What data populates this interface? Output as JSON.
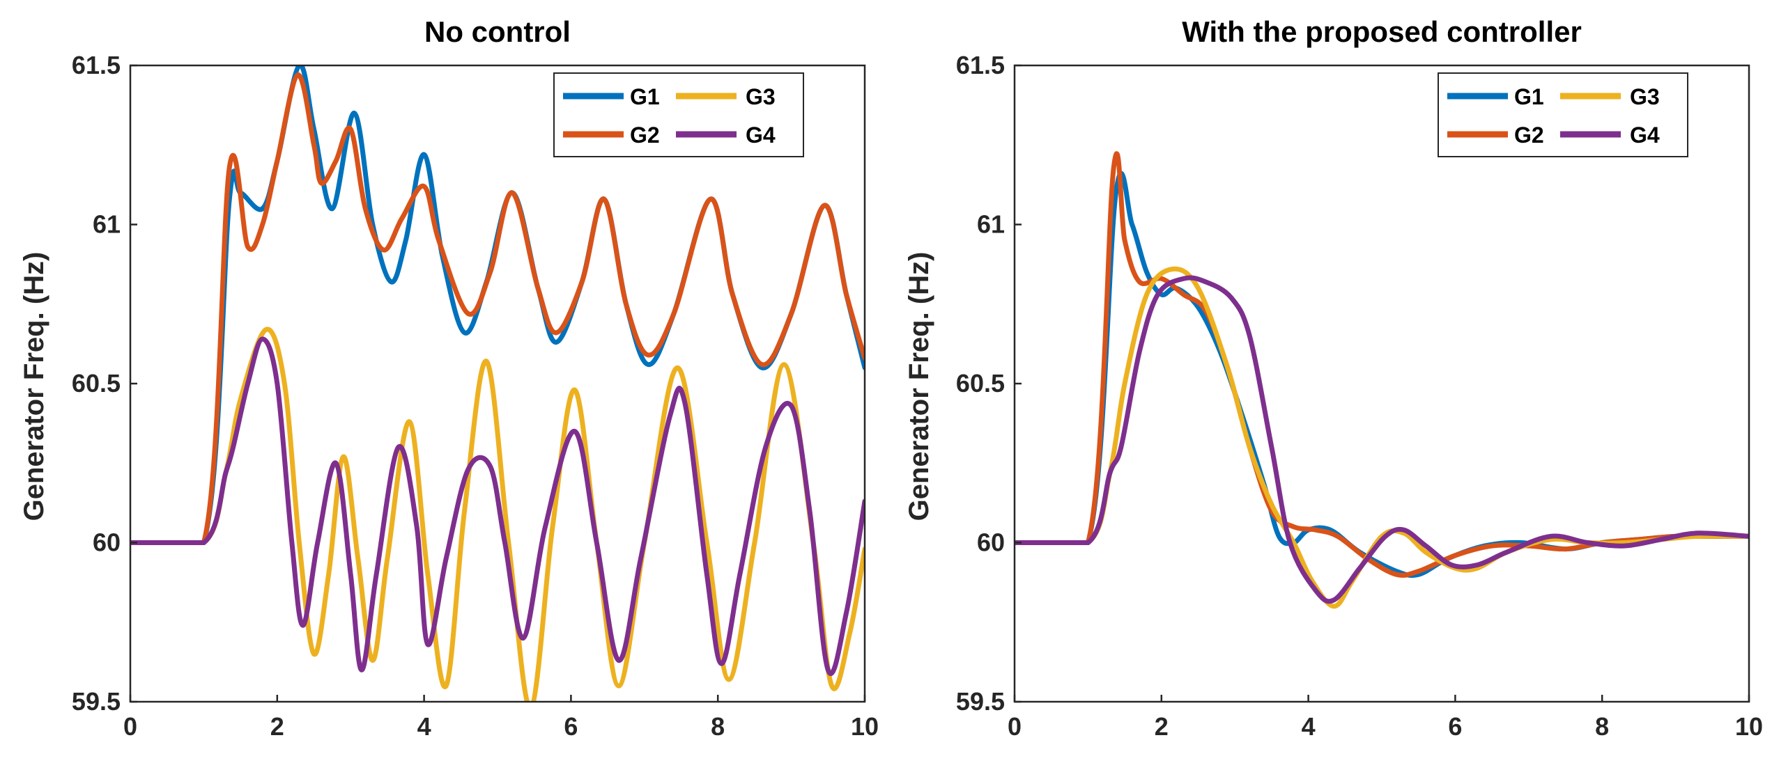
{
  "chart_data": [
    {
      "type": "line",
      "title": "No control",
      "xlabel": "",
      "ylabel": "Generator Freq. (Hz)",
      "xlim": [
        0,
        10
      ],
      "ylim": [
        59.5,
        61.5
      ],
      "xticks": [
        "0",
        "2",
        "4",
        "6",
        "8",
        "10"
      ],
      "yticks": [
        "59.5",
        "60",
        "60.5",
        "61",
        "61.5"
      ],
      "legend": {
        "location": "top-right",
        "entries": [
          "G1",
          "G3",
          "G2",
          "G4"
        ]
      },
      "series": [
        {
          "name": "G1",
          "color": "#0072BD",
          "points": [
            [
              0,
              60
            ],
            [
              1,
              60
            ],
            [
              1.35,
              61.08
            ],
            [
              1.5,
              61.1
            ],
            [
              1.8,
              61.05
            ],
            [
              2.0,
              61.2
            ],
            [
              2.3,
              61.5
            ],
            [
              2.5,
              61.3
            ],
            [
              2.75,
              61.05
            ],
            [
              3.05,
              61.35
            ],
            [
              3.3,
              61.0
            ],
            [
              3.55,
              60.82
            ],
            [
              3.75,
              60.95
            ],
            [
              4.0,
              61.22
            ],
            [
              4.25,
              60.9
            ],
            [
              4.55,
              60.66
            ],
            [
              4.85,
              60.82
            ],
            [
              5.2,
              61.1
            ],
            [
              5.55,
              60.8
            ],
            [
              5.8,
              60.63
            ],
            [
              6.15,
              60.82
            ],
            [
              6.45,
              61.08
            ],
            [
              6.75,
              60.75
            ],
            [
              7.05,
              60.56
            ],
            [
              7.4,
              60.72
            ],
            [
              7.9,
              61.08
            ],
            [
              8.2,
              60.78
            ],
            [
              8.6,
              60.55
            ],
            [
              9.0,
              60.72
            ],
            [
              9.45,
              61.06
            ],
            [
              9.75,
              60.78
            ],
            [
              10.0,
              60.55
            ]
          ]
        },
        {
          "name": "G2",
          "color": "#D95319",
          "points": [
            [
              0,
              60
            ],
            [
              1,
              60
            ],
            [
              1.35,
              61.18
            ],
            [
              1.6,
              60.93
            ],
            [
              1.8,
              61.0
            ],
            [
              2.0,
              61.2
            ],
            [
              2.28,
              61.47
            ],
            [
              2.5,
              61.25
            ],
            [
              2.6,
              61.13
            ],
            [
              2.8,
              61.2
            ],
            [
              3.0,
              61.3
            ],
            [
              3.2,
              61.05
            ],
            [
              3.45,
              60.92
            ],
            [
              3.7,
              61.02
            ],
            [
              4.0,
              61.12
            ],
            [
              4.2,
              60.95
            ],
            [
              4.6,
              60.72
            ],
            [
              4.9,
              60.85
            ],
            [
              5.2,
              61.1
            ],
            [
              5.55,
              60.8
            ],
            [
              5.8,
              60.66
            ],
            [
              6.15,
              60.82
            ],
            [
              6.45,
              61.08
            ],
            [
              6.75,
              60.75
            ],
            [
              7.05,
              60.59
            ],
            [
              7.4,
              60.72
            ],
            [
              7.9,
              61.08
            ],
            [
              8.2,
              60.78
            ],
            [
              8.6,
              60.56
            ],
            [
              9.0,
              60.72
            ],
            [
              9.45,
              61.06
            ],
            [
              9.75,
              60.78
            ],
            [
              10.0,
              60.58
            ]
          ]
        },
        {
          "name": "G3",
          "color": "#EDB120",
          "points": [
            [
              0,
              60
            ],
            [
              1,
              60
            ],
            [
              1.3,
              60.22
            ],
            [
              1.5,
              60.45
            ],
            [
              1.85,
              60.67
            ],
            [
              2.1,
              60.5
            ],
            [
              2.3,
              60.0
            ],
            [
              2.5,
              59.65
            ],
            [
              2.7,
              59.9
            ],
            [
              2.9,
              60.27
            ],
            [
              3.1,
              59.95
            ],
            [
              3.3,
              59.63
            ],
            [
              3.5,
              59.95
            ],
            [
              3.8,
              60.38
            ],
            [
              4.05,
              59.9
            ],
            [
              4.3,
              59.55
            ],
            [
              4.55,
              60.1
            ],
            [
              4.85,
              60.57
            ],
            [
              5.15,
              60.0
            ],
            [
              5.45,
              59.48
            ],
            [
              5.75,
              60.05
            ],
            [
              6.05,
              60.48
            ],
            [
              6.35,
              60.0
            ],
            [
              6.65,
              59.55
            ],
            [
              7.0,
              60.0
            ],
            [
              7.45,
              60.55
            ],
            [
              7.85,
              60.0
            ],
            [
              8.15,
              59.57
            ],
            [
              8.5,
              60.0
            ],
            [
              8.9,
              60.56
            ],
            [
              9.3,
              60.0
            ],
            [
              9.55,
              59.55
            ],
            [
              9.8,
              59.72
            ],
            [
              10.0,
              59.98
            ]
          ]
        },
        {
          "name": "G4",
          "color": "#7E2F8E",
          "points": [
            [
              0,
              60
            ],
            [
              1,
              60
            ],
            [
              1.3,
              60.22
            ],
            [
              1.4,
              60.3
            ],
            [
              1.6,
              60.5
            ],
            [
              1.8,
              60.64
            ],
            [
              2.0,
              60.5
            ],
            [
              2.2,
              60.0
            ],
            [
              2.35,
              59.74
            ],
            [
              2.55,
              60.0
            ],
            [
              2.8,
              60.25
            ],
            [
              3.0,
              59.9
            ],
            [
              3.15,
              59.6
            ],
            [
              3.35,
              59.9
            ],
            [
              3.65,
              60.3
            ],
            [
              3.9,
              60.05
            ],
            [
              4.05,
              59.68
            ],
            [
              4.3,
              59.95
            ],
            [
              4.6,
              60.23
            ],
            [
              4.9,
              60.24
            ],
            [
              5.1,
              60.0
            ],
            [
              5.35,
              59.7
            ],
            [
              5.65,
              60.05
            ],
            [
              6.05,
              60.35
            ],
            [
              6.35,
              60.0
            ],
            [
              6.65,
              59.63
            ],
            [
              6.95,
              59.95
            ],
            [
              7.35,
              60.4
            ],
            [
              7.55,
              60.44
            ],
            [
              7.85,
              59.9
            ],
            [
              8.05,
              59.62
            ],
            [
              8.3,
              59.9
            ],
            [
              8.65,
              60.3
            ],
            [
              9.0,
              60.43
            ],
            [
              9.25,
              60.1
            ],
            [
              9.5,
              59.6
            ],
            [
              9.75,
              59.78
            ],
            [
              10.0,
              60.13
            ]
          ]
        }
      ]
    },
    {
      "type": "line",
      "title": "With the proposed controller",
      "xlabel": "",
      "ylabel": "Generator Freq. (Hz)",
      "xlim": [
        0,
        10
      ],
      "ylim": [
        59.5,
        61.5
      ],
      "xticks": [
        "0",
        "2",
        "4",
        "6",
        "8",
        "10"
      ],
      "yticks": [
        "59.5",
        "60",
        "60.5",
        "61",
        "61.5"
      ],
      "legend": {
        "location": "top-right",
        "entries": [
          "G1",
          "G3",
          "G2",
          "G4"
        ]
      },
      "series": [
        {
          "name": "G1",
          "color": "#0072BD",
          "points": [
            [
              0,
              60
            ],
            [
              1,
              60
            ],
            [
              1.38,
              61.1
            ],
            [
              1.6,
              61.0
            ],
            [
              1.8,
              60.85
            ],
            [
              2.0,
              60.78
            ],
            [
              2.2,
              60.8
            ],
            [
              2.5,
              60.74
            ],
            [
              2.8,
              60.6
            ],
            [
              3.1,
              60.4
            ],
            [
              3.4,
              60.18
            ],
            [
              3.6,
              60.02
            ],
            [
              3.8,
              60.0
            ],
            [
              4.0,
              60.04
            ],
            [
              4.3,
              60.04
            ],
            [
              4.7,
              59.97
            ],
            [
              5.2,
              59.91
            ],
            [
              5.5,
              59.9
            ],
            [
              5.9,
              59.95
            ],
            [
              6.4,
              59.99
            ],
            [
              6.9,
              60.0
            ],
            [
              7.5,
              59.98
            ],
            [
              8.0,
              60.0
            ],
            [
              8.5,
              60.01
            ],
            [
              9.0,
              60.02
            ],
            [
              9.5,
              60.02
            ],
            [
              10.0,
              60.02
            ]
          ]
        },
        {
          "name": "G2",
          "color": "#D95319",
          "points": [
            [
              0,
              60
            ],
            [
              1,
              60
            ],
            [
              1.35,
              61.18
            ],
            [
              1.5,
              60.95
            ],
            [
              1.7,
              60.82
            ],
            [
              2.0,
              60.83
            ],
            [
              2.3,
              60.78
            ],
            [
              2.6,
              60.73
            ],
            [
              2.9,
              60.55
            ],
            [
              3.2,
              60.3
            ],
            [
              3.5,
              60.1
            ],
            [
              3.8,
              60.05
            ],
            [
              4.1,
              60.04
            ],
            [
              4.4,
              60.02
            ],
            [
              4.8,
              59.95
            ],
            [
              5.2,
              59.9
            ],
            [
              5.5,
              59.91
            ],
            [
              6.0,
              59.96
            ],
            [
              6.5,
              59.99
            ],
            [
              7.0,
              59.99
            ],
            [
              7.5,
              59.98
            ],
            [
              8.0,
              60.0
            ],
            [
              8.5,
              60.01
            ],
            [
              9.0,
              60.02
            ],
            [
              9.5,
              60.02
            ],
            [
              10.0,
              60.02
            ]
          ]
        },
        {
          "name": "G3",
          "color": "#EDB120",
          "points": [
            [
              0,
              60
            ],
            [
              1,
              60
            ],
            [
              1.3,
              60.22
            ],
            [
              1.5,
              60.5
            ],
            [
              1.8,
              60.78
            ],
            [
              2.15,
              60.86
            ],
            [
              2.5,
              60.8
            ],
            [
              2.9,
              60.55
            ],
            [
              3.2,
              60.3
            ],
            [
              3.5,
              60.12
            ],
            [
              3.8,
              60.0
            ],
            [
              4.05,
              59.88
            ],
            [
              4.35,
              59.8
            ],
            [
              4.6,
              59.88
            ],
            [
              5.0,
              60.02
            ],
            [
              5.3,
              60.03
            ],
            [
              5.6,
              59.97
            ],
            [
              6.0,
              59.92
            ],
            [
              6.3,
              59.92
            ],
            [
              6.7,
              59.97
            ],
            [
              7.3,
              60.01
            ],
            [
              7.8,
              60.0
            ],
            [
              8.3,
              60.0
            ],
            [
              8.8,
              60.01
            ],
            [
              9.3,
              60.02
            ],
            [
              10.0,
              60.02
            ]
          ]
        },
        {
          "name": "G4",
          "color": "#7E2F8E",
          "points": [
            [
              0,
              60
            ],
            [
              1,
              60
            ],
            [
              1.3,
              60.22
            ],
            [
              1.45,
              60.3
            ],
            [
              1.7,
              60.6
            ],
            [
              1.95,
              60.78
            ],
            [
              2.3,
              60.83
            ],
            [
              2.6,
              60.82
            ],
            [
              2.95,
              60.77
            ],
            [
              3.2,
              60.65
            ],
            [
              3.5,
              60.3
            ],
            [
              3.75,
              60.0
            ],
            [
              4.1,
              59.85
            ],
            [
              4.35,
              59.82
            ],
            [
              4.7,
              59.92
            ],
            [
              5.05,
              60.02
            ],
            [
              5.3,
              60.04
            ],
            [
              5.6,
              59.99
            ],
            [
              5.95,
              59.93
            ],
            [
              6.3,
              59.93
            ],
            [
              6.7,
              59.97
            ],
            [
              7.3,
              60.02
            ],
            [
              7.8,
              60.0
            ],
            [
              8.3,
              59.99
            ],
            [
              8.8,
              60.01
            ],
            [
              9.3,
              60.03
            ],
            [
              10.0,
              60.02
            ]
          ]
        }
      ]
    }
  ]
}
